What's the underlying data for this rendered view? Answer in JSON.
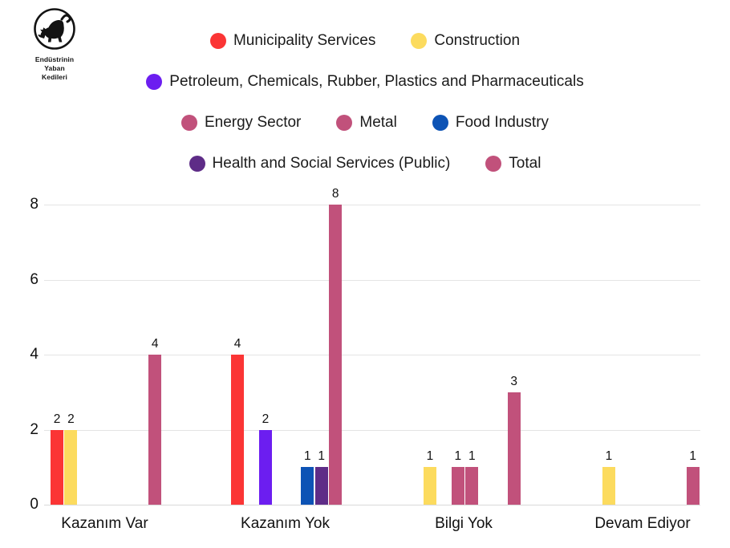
{
  "logo": {
    "line1": "Endüstrinin",
    "line2": "Yaban",
    "line3": "Kedileri",
    "icon": "black-cat-sabotage-logo"
  },
  "theme": {
    "background": "#ffffff",
    "text": "#1b1b1b",
    "gridline": "#e4e4e4",
    "axis_line": "#d9d9d9"
  },
  "chart_data": {
    "type": "bar",
    "title": "",
    "xlabel": "",
    "ylabel": "",
    "categories": [
      "Kazanım Var",
      "Kazanım Yok",
      "Bilgi Yok",
      "Devam Ediyor"
    ],
    "series": [
      {
        "name": "Municipality Services",
        "color": "#fb3535",
        "values": [
          2,
          4,
          0,
          0
        ]
      },
      {
        "name": "Construction",
        "color": "#fcdb5e",
        "values": [
          2,
          0,
          1,
          1
        ]
      },
      {
        "name": "Petroleum, Chemicals, Rubber, Plastics and Pharmaceuticals",
        "color": "#6c1ef0",
        "values": [
          0,
          2,
          0,
          0
        ]
      },
      {
        "name": "Energy Sector",
        "color": "#c1517b",
        "values": [
          0,
          0,
          1,
          0
        ]
      },
      {
        "name": "Metal",
        "color": "#c1517b",
        "values": [
          0,
          0,
          1,
          0
        ]
      },
      {
        "name": "Food Industry",
        "color": "#0d53b5",
        "values": [
          0,
          1,
          0,
          0
        ]
      },
      {
        "name": "Health and Social Services (Public)",
        "color": "#5e2c87",
        "values": [
          0,
          1,
          0,
          0
        ]
      },
      {
        "name": "Total",
        "color": "#c1517b",
        "values": [
          4,
          8,
          3,
          1
        ]
      }
    ],
    "yticks": [
      0,
      2,
      4,
      6,
      8
    ],
    "ylim": [
      0,
      8
    ],
    "grid": "horizontal",
    "legend_position": "top",
    "value_labels": true
  }
}
